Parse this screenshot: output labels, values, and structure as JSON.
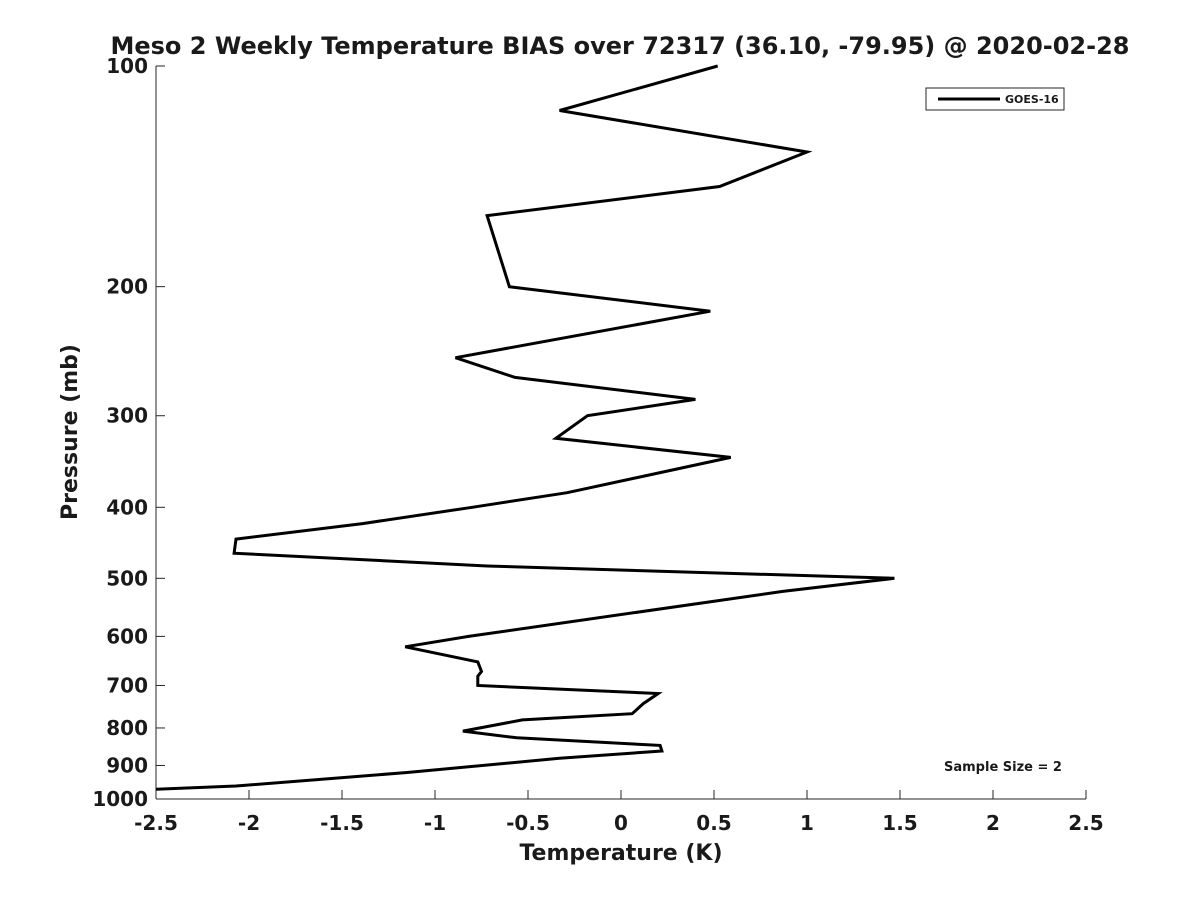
{
  "chart_data": {
    "type": "line",
    "title": "Meso 2 Weekly Temperature BIAS over 72317 (36.10, -79.95) @ 2020-02-28",
    "xlabel": "Temperature (K)",
    "ylabel": "Pressure (mb)",
    "xlim": [
      -2.5,
      2.5
    ],
    "ylim": [
      1000,
      100
    ],
    "y_scale": "log",
    "y_reversed": true,
    "x_ticks": [
      "-2.5",
      "-2",
      "-1.5",
      "-1",
      "-0.5",
      "0",
      "0.5",
      "1",
      "1.5",
      "2",
      "2.5"
    ],
    "x_tick_values": [
      -2.5,
      -2,
      -1.5,
      -1,
      -0.5,
      0,
      0.5,
      1,
      1.5,
      2,
      2.5
    ],
    "y_ticks": [
      "100",
      "200",
      "300",
      "400",
      "500",
      "600",
      "700",
      "800",
      "900",
      "1000"
    ],
    "y_tick_values": [
      100,
      200,
      300,
      400,
      500,
      600,
      700,
      800,
      900,
      1000
    ],
    "grid": false,
    "legend_position": "top-right",
    "line_color": "#000000",
    "series": [
      {
        "name": "GOES-16",
        "points": [
          [
            0.52,
            100
          ],
          [
            -0.33,
            115
          ],
          [
            1.0,
            131
          ],
          [
            0.53,
            146
          ],
          [
            -0.72,
            160
          ],
          [
            -0.6,
            200
          ],
          [
            0.48,
            216
          ],
          [
            -0.89,
            250
          ],
          [
            -0.57,
            266
          ],
          [
            0.4,
            285
          ],
          [
            -0.18,
            300
          ],
          [
            -0.35,
            322
          ],
          [
            0.59,
            342
          ],
          [
            -0.29,
            382
          ],
          [
            -0.8,
            400
          ],
          [
            -1.39,
            421
          ],
          [
            -2.07,
            442
          ],
          [
            -2.08,
            462
          ],
          [
            -0.72,
            481
          ],
          [
            1.47,
            500
          ],
          [
            0.87,
            521
          ],
          [
            -0.82,
            600
          ],
          [
            -1.16,
            620
          ],
          [
            -0.77,
            650
          ],
          [
            -0.75,
            670
          ],
          [
            -0.77,
            680
          ],
          [
            -0.77,
            700
          ],
          [
            0.2,
            718
          ],
          [
            0.12,
            741
          ],
          [
            0.06,
            765
          ],
          [
            -0.53,
            780
          ],
          [
            -0.85,
            808
          ],
          [
            -0.56,
            825
          ],
          [
            0.21,
            845
          ],
          [
            0.22,
            860
          ],
          [
            -0.33,
            880
          ],
          [
            -1.15,
            920
          ],
          [
            -2.07,
            960
          ],
          [
            -2.5,
            970
          ]
        ]
      }
    ],
    "annotation": "Sample Size = 2"
  }
}
